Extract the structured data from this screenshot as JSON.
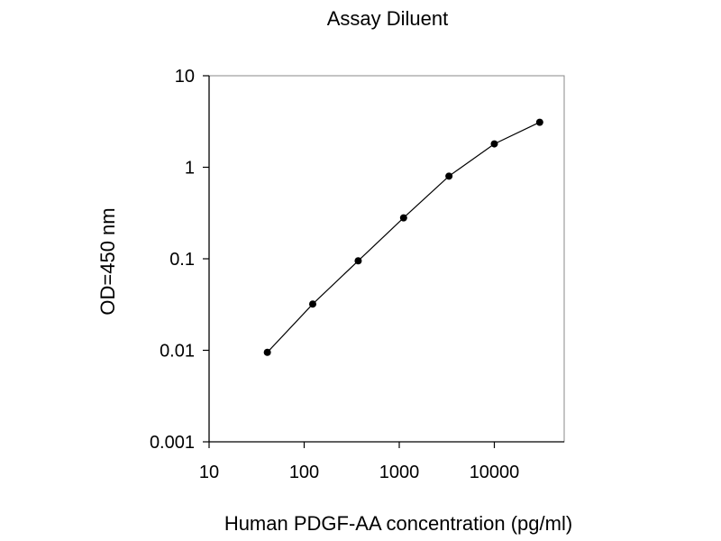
{
  "chart_data": {
    "type": "line",
    "title": "Assay Diluent",
    "xlabel": "Human PDGF-AA concentration (pg/ml)",
    "ylabel": "OD=450 nm",
    "x_scale": "log",
    "y_scale": "log",
    "xlim": [
      10,
      50000
    ],
    "ylim": [
      0.001,
      10
    ],
    "x_ticks": [
      10,
      100,
      1000,
      10000
    ],
    "x_tick_labels": [
      "10",
      "100",
      "1000",
      "10000"
    ],
    "y_ticks": [
      10,
      1,
      0.1,
      0.01,
      0.001
    ],
    "y_tick_labels": [
      "10",
      "1",
      "0.1",
      "0.01",
      "0.001"
    ],
    "grid": false,
    "legend": "none",
    "series": [
      {
        "x": [
          41,
          123,
          370,
          1111,
          3333,
          10000,
          30000
        ],
        "y": [
          0.0095,
          0.032,
          0.095,
          0.28,
          0.8,
          1.8,
          3.1
        ]
      }
    ],
    "colors": {
      "line": "#000000",
      "marker": "#000000",
      "axes": "#000000",
      "frame": "#888888"
    }
  }
}
